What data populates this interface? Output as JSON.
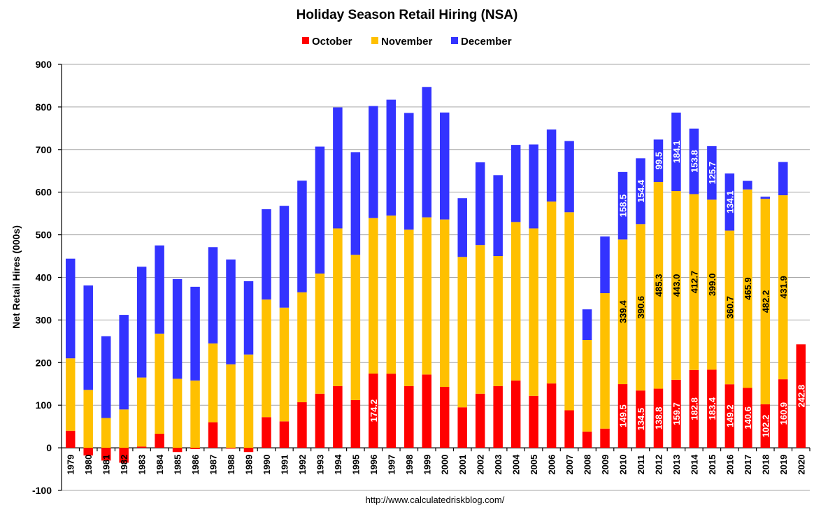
{
  "chart_data": {
    "type": "bar",
    "stacked": true,
    "title": "Holiday Season Retail Hiring (NSA)",
    "ylabel": "Net Retail Hires (000s)",
    "xlabel": "",
    "ylim": [
      -100,
      900
    ],
    "yticks": [
      -100,
      0,
      100,
      200,
      300,
      400,
      500,
      600,
      700,
      800,
      900
    ],
    "grid": true,
    "legend_position": "top-center",
    "source": "http://www.calculatedriskblog.com/",
    "colors": {
      "October": "#ff0000",
      "November": "#ffc000",
      "December": "#3333ff"
    },
    "categories": [
      "1979",
      "1980",
      "1981",
      "1982",
      "1983",
      "1984",
      "1985",
      "1986",
      "1987",
      "1988",
      "1989",
      "1990",
      "1991",
      "1992",
      "1993",
      "1994",
      "1995",
      "1996",
      "1997",
      "1998",
      "1999",
      "2000",
      "2001",
      "2002",
      "2003",
      "2004",
      "2005",
      "2006",
      "2007",
      "2008",
      "2009",
      "2010",
      "2011",
      "2012",
      "2013",
      "2014",
      "2015",
      "2016",
      "2017",
      "2018",
      "2019",
      "2020"
    ],
    "series": [
      {
        "name": "October",
        "values": [
          40,
          -18,
          -30,
          -35,
          3,
          33,
          -10,
          -3,
          60,
          -2,
          -10,
          72,
          62,
          107,
          127,
          145,
          112,
          174.2,
          174,
          145,
          172,
          143,
          95,
          127,
          145,
          158,
          122,
          151,
          88,
          38,
          45,
          149.5,
          134.5,
          138.8,
          159.7,
          182.8,
          183.4,
          149.2,
          140.6,
          102.2,
          160.9,
          242.8
        ]
      },
      {
        "name": "November",
        "values": [
          170,
          136,
          70,
          90,
          162,
          235,
          162,
          158,
          185,
          196,
          219,
          276,
          267,
          258,
          282,
          370,
          341,
          365,
          371,
          367,
          369,
          393,
          353,
          349,
          305,
          372,
          393,
          427,
          465,
          215,
          318,
          339.4,
          390.6,
          485.3,
          443.0,
          412.7,
          399.0,
          360.7,
          465.9,
          482.2,
          431.9,
          0
        ]
      },
      {
        "name": "December",
        "values": [
          234,
          245,
          192,
          222,
          260,
          207,
          234,
          220,
          226,
          246,
          172,
          212,
          239,
          262,
          298,
          284,
          241,
          263,
          272,
          274,
          306,
          251,
          138,
          194,
          190,
          181,
          197,
          169,
          167,
          72,
          133,
          158.5,
          154.4,
          99.5,
          184.1,
          153.8,
          125.7,
          134.1,
          20,
          5,
          78,
          0
        ]
      }
    ],
    "data_labels": {
      "October": {
        "1996": "174.2",
        "2010": "149.5",
        "2011": "134.5",
        "2012": "138.8",
        "2013": "159.7",
        "2014": "182.8",
        "2015": "183.4",
        "2016": "149.2",
        "2017": "140.6",
        "2018": "102.2",
        "2019": "160.9",
        "2020": "242.8"
      },
      "November": {
        "2010": "339.4",
        "2011": "390.6",
        "2012": "485.3",
        "2013": "443.0",
        "2014": "412.7",
        "2015": "399.0",
        "2016": "360.7",
        "2017": "465.9",
        "2018": "482.2",
        "2019": "431.9"
      },
      "December": {
        "2010": "158.5",
        "2011": "154.4",
        "2012": "99.5",
        "2013": "184.1",
        "2014": "153.8",
        "2015": "125.7",
        "2016": "134.1"
      }
    }
  }
}
